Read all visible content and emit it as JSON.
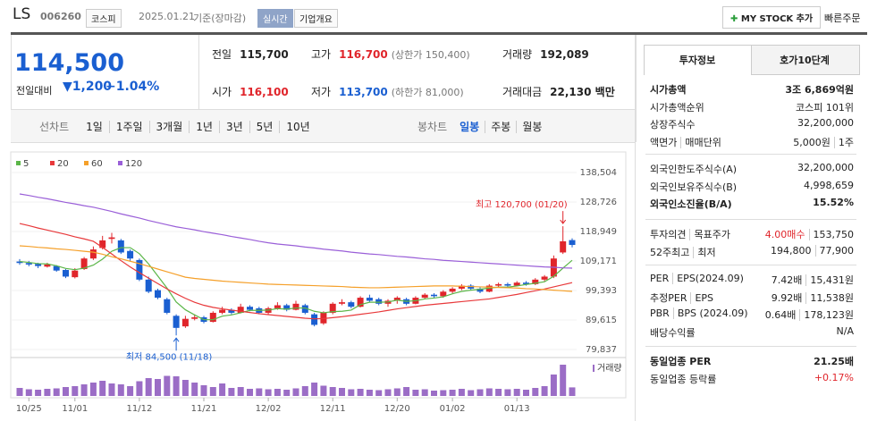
{
  "header": {
    "name": "LS",
    "code": "006260",
    "market": "코스피",
    "date": "2025.01.21",
    "basis": "기준(장마감)",
    "badge": "실시간",
    "overview": "기업개요",
    "mystock": "MY STOCK 추가",
    "quick": "빠른주문"
  },
  "quote": {
    "price": "114,500",
    "change_label": "전일대비",
    "change": "▼1,200",
    "change_pct": "−1.04%"
  },
  "stats": [
    {
      "label": "전일",
      "value": "115,700"
    },
    {
      "label": "고가",
      "value": "116,700",
      "note": "(상한가 150,400)",
      "color": "#e0252b"
    },
    {
      "label": "거래량",
      "value": "192,089"
    },
    {
      "label": "시가",
      "value": "116,100",
      "color": "#e0252b"
    },
    {
      "label": "저가",
      "value": "113,700",
      "note": "(하한가 81,000)",
      "color": "#1a5fd1"
    },
    {
      "label": "거래대금",
      "value": "22,130 백만"
    }
  ],
  "periods": {
    "line_label": "선차트",
    "line": [
      "1일",
      "1주일",
      "3개월",
      "1년",
      "3년",
      "5년",
      "10년"
    ],
    "candle_label": "봉차트",
    "candle": [
      "일봉",
      "주봉",
      "월봉"
    ]
  },
  "chart": {
    "type": "candlestick",
    "categories": [
      null,
      "10/25",
      null,
      null,
      null,
      null,
      "11/01",
      null,
      null,
      null,
      null,
      null,
      null,
      "11/12",
      null,
      null,
      null,
      null,
      null,
      null,
      "11/21",
      null,
      null,
      null,
      null,
      null,
      null,
      "12/02",
      null,
      null,
      null,
      null,
      null,
      null,
      "12/11",
      null,
      null,
      null,
      null,
      null,
      null,
      "12/20",
      null,
      null,
      null,
      null,
      null,
      "01/02",
      null,
      null,
      null,
      null,
      null,
      null,
      "01/13",
      null,
      null,
      null,
      null,
      null,
      null
    ],
    "ohlc": [
      [
        109000,
        109800,
        107900,
        108500
      ],
      [
        108500,
        109200,
        107400,
        108000
      ],
      [
        108200,
        108600,
        106800,
        107500
      ],
      [
        107300,
        108600,
        107000,
        108000
      ],
      [
        107500,
        107800,
        105600,
        106000
      ],
      [
        106200,
        106500,
        103500,
        104000
      ],
      [
        103800,
        106800,
        103400,
        106000
      ],
      [
        106500,
        110500,
        106200,
        110000
      ],
      [
        110000,
        114000,
        109500,
        113000
      ],
      [
        113500,
        117500,
        113000,
        116000
      ],
      [
        116500,
        118500,
        115000,
        117000
      ],
      [
        116000,
        116500,
        111500,
        112000
      ],
      [
        112500,
        113000,
        109000,
        110000
      ],
      [
        109500,
        110000,
        102500,
        103000
      ],
      [
        103000,
        104000,
        98500,
        99000
      ],
      [
        99500,
        100000,
        96500,
        97000
      ],
      [
        96500,
        97000,
        91500,
        92000
      ],
      [
        91000,
        91500,
        84500,
        87000
      ],
      [
        87500,
        91000,
        87000,
        90000
      ],
      [
        90000,
        91500,
        89500,
        90500
      ],
      [
        90500,
        91000,
        88500,
        89000
      ],
      [
        89000,
        92500,
        88800,
        92000
      ],
      [
        92000,
        94000,
        91500,
        93000
      ],
      [
        93000,
        93500,
        91500,
        92000
      ],
      [
        92000,
        95000,
        91800,
        94000
      ],
      [
        94000,
        94500,
        92500,
        93000
      ],
      [
        93500,
        94000,
        91500,
        92000
      ],
      [
        92000,
        94000,
        91500,
        93500
      ],
      [
        93500,
        95500,
        93000,
        94500
      ],
      [
        94500,
        95000,
        92500,
        93000
      ],
      [
        93000,
        96000,
        92800,
        95000
      ],
      [
        94500,
        95000,
        91500,
        92000
      ],
      [
        91500,
        92000,
        87500,
        88000
      ],
      [
        88500,
        92500,
        88000,
        92000
      ],
      [
        92000,
        95500,
        91500,
        95000
      ],
      [
        95000,
        96500,
        94500,
        95500
      ],
      [
        95500,
        96000,
        93500,
        94000
      ],
      [
        94000,
        97500,
        93800,
        97000
      ],
      [
        97000,
        98000,
        95500,
        96000
      ],
      [
        96500,
        97000,
        94500,
        95000
      ],
      [
        95000,
        96500,
        94000,
        96000
      ],
      [
        96000,
        97500,
        95000,
        97000
      ],
      [
        96500,
        97000,
        94500,
        95000
      ],
      [
        95000,
        97500,
        94800,
        97000
      ],
      [
        97000,
        98500,
        96500,
        98000
      ],
      [
        98000,
        98500,
        96800,
        97500
      ],
      [
        97500,
        99500,
        97000,
        99000
      ],
      [
        99000,
        100500,
        98500,
        100000
      ],
      [
        100000,
        101500,
        99500,
        101000
      ],
      [
        101000,
        101500,
        99500,
        100000
      ],
      [
        100000,
        100500,
        98500,
        99000
      ],
      [
        99000,
        101500,
        98800,
        101000
      ],
      [
        101000,
        102000,
        100500,
        101500
      ],
      [
        101500,
        102000,
        100500,
        101000
      ],
      [
        101000,
        102500,
        100800,
        102000
      ],
      [
        102000,
        102500,
        101000,
        101500
      ],
      [
        101500,
        103500,
        101200,
        103000
      ],
      [
        103000,
        104500,
        102500,
        104000
      ],
      [
        104000,
        111000,
        103500,
        110000
      ],
      [
        112000,
        120700,
        111500,
        115700
      ],
      [
        116100,
        116700,
        113700,
        114500
      ]
    ],
    "up_color": "#e0252b",
    "down_color": "#1a5fd1",
    "series": [
      {
        "name": "5",
        "color": "#5bb648",
        "values": [
          109000,
          108700,
          108300,
          108200,
          107600,
          106700,
          106300,
          106800,
          107800,
          109800,
          112400,
          113600,
          113600,
          111600,
          108200,
          104200,
          100200,
          95600,
          93000,
          91300,
          89700,
          89700,
          90900,
          91300,
          92000,
          92800,
          92800,
          92900,
          93400,
          93200,
          93600,
          93600,
          92500,
          92000,
          92400,
          92500,
          92900,
          94700,
          95500,
          95500,
          95600,
          96200,
          95800,
          96000,
          96600,
          96900,
          97300,
          98300,
          99100,
          99500,
          99800,
          100200,
          100500,
          100500,
          100900,
          101400,
          101800,
          102300,
          104100,
          106800,
          109400
        ]
      },
      {
        "name": "20",
        "color": "#e8393b",
        "values": [
          121600,
          120900,
          120100,
          119400,
          118700,
          118000,
          117200,
          116500,
          115700,
          113700,
          111500,
          109300,
          107200,
          105300,
          103500,
          101700,
          99900,
          98300,
          96800,
          95500,
          94500,
          93800,
          93300,
          92900,
          92500,
          92100,
          91700,
          91400,
          91100,
          90800,
          90500,
          90200,
          90000,
          90100,
          90400,
          90700,
          91100,
          91500,
          91900,
          92300,
          92800,
          93300,
          93700,
          94100,
          94500,
          94800,
          95100,
          95400,
          95700,
          96000,
          96300,
          96600,
          97100,
          97600,
          98100,
          98700,
          99300,
          99900,
          100600,
          101300,
          102000
        ]
      },
      {
        "name": "60",
        "color": "#f5a02a",
        "values": [
          114200,
          114000,
          113700,
          113500,
          113200,
          113000,
          112700,
          112400,
          112100,
          111400,
          110600,
          109900,
          109100,
          108300,
          107400,
          106500,
          105600,
          104700,
          103800,
          103400,
          103100,
          102800,
          102500,
          102300,
          102100,
          101900,
          101700,
          101500,
          101400,
          101300,
          101200,
          101100,
          101000,
          100900,
          100800,
          100700,
          100500,
          100400,
          100300,
          100300,
          100400,
          100500,
          100600,
          100700,
          100800,
          100900,
          100900,
          100900,
          100800,
          100700,
          100600,
          100500,
          100400,
          100300,
          100200,
          100000,
          99900,
          99700,
          99500,
          99300,
          99100
        ]
      },
      {
        "name": "120",
        "color": "#9a5fd8",
        "values": [
          131400,
          130900,
          130300,
          129800,
          129200,
          128600,
          128100,
          127500,
          127000,
          126300,
          125600,
          124800,
          124100,
          123400,
          122600,
          121900,
          121200,
          120500,
          120000,
          119500,
          118900,
          118400,
          117900,
          117300,
          116800,
          116300,
          115700,
          115200,
          114800,
          114500,
          114200,
          113800,
          113500,
          113100,
          112800,
          112500,
          112100,
          111800,
          111500,
          111300,
          111000,
          110700,
          110500,
          110200,
          109900,
          109700,
          109400,
          109200,
          109000,
          108800,
          108600,
          108400,
          108200,
          108000,
          107800,
          107600,
          107400,
          107200,
          107100,
          106900,
          106800
        ]
      }
    ],
    "ylim": [
      77170,
      142356
    ],
    "yticks": [
      {
        "value": 138504,
        "label": "138,504"
      },
      {
        "value": 128726,
        "label": "128,726"
      },
      {
        "value": 118949,
        "label": "118,949"
      },
      {
        "value": 109171,
        "label": "109,171"
      },
      {
        "value": 99393,
        "label": "99,393"
      },
      {
        "value": 89615,
        "label": "89,615"
      },
      {
        "value": 79837,
        "label": "79,837"
      }
    ],
    "max_label": "최고 120,700 (01/20)",
    "min_label": "최저 84,500 (11/18)",
    "volume": {
      "name": "거래량",
      "color": "#9b6dc6",
      "ylim": [
        0,
        800000
      ],
      "values": [
        180000,
        150000,
        140000,
        160000,
        170000,
        200000,
        220000,
        260000,
        300000,
        340000,
        280000,
        260000,
        220000,
        330000,
        400000,
        380000,
        450000,
        440000,
        360000,
        300000,
        240000,
        200000,
        280000,
        180000,
        200000,
        160000,
        170000,
        150000,
        160000,
        140000,
        170000,
        220000,
        300000,
        230000,
        200000,
        180000,
        150000,
        160000,
        140000,
        130000,
        150000,
        170000,
        200000,
        140000,
        150000,
        120000,
        130000,
        140000,
        160000,
        130000,
        150000,
        170000,
        160000,
        150000,
        160000,
        140000,
        180000,
        220000,
        480000,
        700000,
        192089
      ]
    }
  },
  "panel": {
    "tabs": [
      "투자정보",
      "호가10단계"
    ],
    "groups": [
      [
        {
          "label": "시가총액",
          "value": "3조 6,869억원",
          "bold": true
        },
        {
          "label": "시가총액순위",
          "value": "코스피 101위"
        },
        {
          "label": "상장주식수",
          "value": "32,200,000"
        },
        {
          "label": "액면가",
          "label2": "매매단위",
          "value": "5,000원",
          "value2": "1주"
        }
      ],
      [
        {
          "label": "외국인한도주식수(A)",
          "value": "32,200,000"
        },
        {
          "label": "외국인보유주식수(B)",
          "value": "4,998,659"
        },
        {
          "label": "외국인소진율(B/A)",
          "value": "15.52%",
          "bold": true
        }
      ],
      [
        {
          "label": "투자의견",
          "label2": "목표주가",
          "value": "4.00매수",
          "value2": "153,750",
          "color": "#e0252b"
        },
        {
          "label": "52주최고",
          "label2": "최저",
          "value": "194,800",
          "value2": "77,900"
        }
      ],
      [
        {
          "label": "PER",
          "label2": "EPS(2024.09)",
          "value": "7.42배",
          "value2": "15,431원"
        },
        {
          "label": "추정PER",
          "label2": "EPS",
          "value": "9.92배",
          "value2": "11,538원"
        },
        {
          "label": "PBR",
          "label2": "BPS (2024.09)",
          "value": "0.64배",
          "value2": "178,123원"
        },
        {
          "label": "배당수익률",
          "value": "N/A"
        }
      ],
      [
        {
          "label": "동일업종 PER",
          "value": "21.25배",
          "bold": true
        },
        {
          "label": "동일업종 등락률",
          "value": "+0.17%",
          "color": "#e0252b"
        }
      ]
    ]
  }
}
